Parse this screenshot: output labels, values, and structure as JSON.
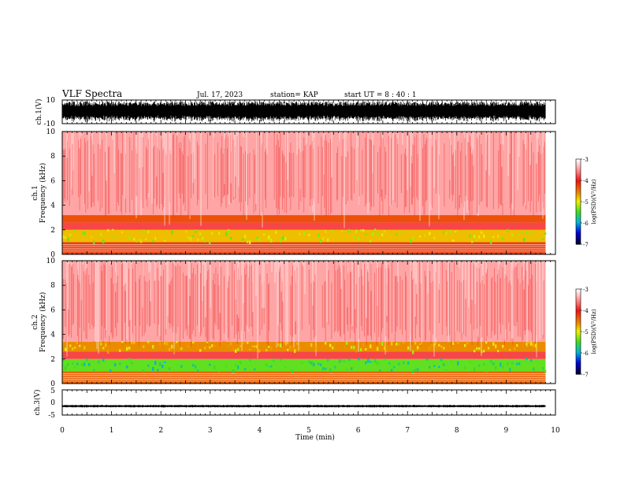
{
  "header": {
    "title": "VLF Spectra",
    "date": "Jul. 17, 2023",
    "station": "station= KAP",
    "start": "start  UT =  8 : 40 : 1"
  },
  "chart_data": [
    {
      "type": "line",
      "panel": "ch1-waveform",
      "ylabel": "ch.1(V)",
      "ylim": [
        -10,
        10
      ],
      "yticks": [
        "10",
        "-10"
      ],
      "xlim": [
        0,
        10
      ],
      "signal": "dense noise spanning nearly the full range",
      "data_extent": [
        0,
        9.8
      ]
    },
    {
      "type": "heatmap",
      "panel": "ch1-spectrogram",
      "ylabel_line1": "ch.1",
      "ylabel_line2": "Frequency (kHz)",
      "ylim": [
        0,
        10
      ],
      "yticks": [
        "0",
        "2",
        "4",
        "6",
        "8",
        "10"
      ],
      "xlim": [
        0,
        10
      ],
      "bands_khz": [
        {
          "from": 0.0,
          "to": 1.0,
          "level": -4.2
        },
        {
          "from": 1.0,
          "to": 2.0,
          "level": -4.8
        },
        {
          "from": 2.0,
          "to": 2.6,
          "level": -3.8
        },
        {
          "from": 2.6,
          "to": 3.2,
          "level": -4.3
        },
        {
          "from": 3.2,
          "to": 10.0,
          "level": -3.4
        }
      ],
      "colorbar": {
        "label": "log(PSD)(V²/Hz)",
        "ticks": [
          "-3",
          "-4",
          "-5",
          "-6",
          "-7"
        ],
        "range": [
          -7,
          -3
        ]
      }
    },
    {
      "type": "heatmap",
      "panel": "ch2-spectrogram",
      "ylabel_line1": "ch.2",
      "ylabel_line2": "Frequency (kHz)",
      "ylim": [
        0,
        10
      ],
      "yticks": [
        "0",
        "2",
        "4",
        "6",
        "8",
        "10"
      ],
      "xlim": [
        0,
        10
      ],
      "bands_khz": [
        {
          "from": 0.0,
          "to": 1.0,
          "level": -4.4
        },
        {
          "from": 1.0,
          "to": 2.0,
          "level": -5.4
        },
        {
          "from": 2.0,
          "to": 2.6,
          "level": -3.8
        },
        {
          "from": 2.6,
          "to": 3.4,
          "level": -4.6
        },
        {
          "from": 3.4,
          "to": 10.0,
          "level": -3.4
        }
      ],
      "colorbar": {
        "label": "log(PSD)(V²/Hz)",
        "ticks": [
          "-3",
          "-4",
          "-5",
          "-6",
          "-7"
        ],
        "range": [
          -7,
          -3
        ]
      }
    },
    {
      "type": "line",
      "panel": "ch3-waveform",
      "ylabel": "ch.3(V)",
      "ylim": [
        -5,
        5
      ],
      "yticks": [
        "5",
        "0",
        "-5"
      ],
      "xlim": [
        0,
        10
      ],
      "signal": "narrow oscillation centred near -1.5 V",
      "data_extent": [
        0,
        9.8
      ],
      "xlabel": "Time (min)",
      "xticks": [
        "0",
        "1",
        "2",
        "3",
        "4",
        "5",
        "6",
        "7",
        "8",
        "9",
        "10"
      ]
    }
  ]
}
